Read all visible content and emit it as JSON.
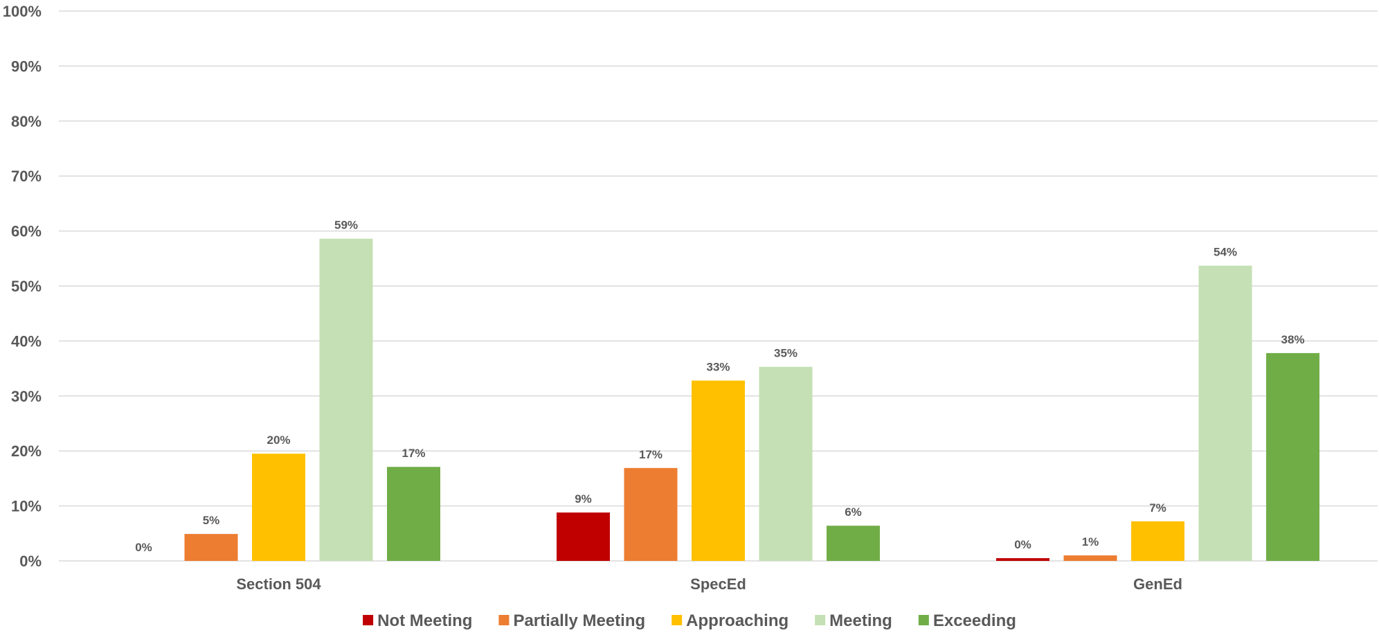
{
  "chart_data": {
    "type": "bar",
    "categories": [
      "Section 504",
      "SpecEd",
      "GenEd"
    ],
    "series": [
      {
        "name": "Not Meeting",
        "color": "#C00000",
        "values": [
          0.0,
          8.8,
          0.5
        ],
        "labels": [
          "0%",
          "9%",
          "0%"
        ]
      },
      {
        "name": "Partially Meeting",
        "color": "#ED7D31",
        "values": [
          4.9,
          16.9,
          1.0
        ],
        "labels": [
          "5%",
          "17%",
          "1%"
        ]
      },
      {
        "name": "Approaching",
        "color": "#FFC000",
        "values": [
          19.5,
          32.8,
          7.2
        ],
        "labels": [
          "20%",
          "33%",
          "7%"
        ]
      },
      {
        "name": "Meeting",
        "color": "#C5E0B4",
        "values": [
          58.6,
          35.3,
          53.7
        ],
        "labels": [
          "59%",
          "35%",
          "54%"
        ]
      },
      {
        "name": "Exceeding",
        "color": "#70AD47",
        "values": [
          17.1,
          6.4,
          37.8
        ],
        "labels": [
          "17%",
          "6%",
          "38%"
        ]
      }
    ],
    "y_ticks": [
      "0%",
      "10%",
      "20%",
      "30%",
      "40%",
      "50%",
      "60%",
      "70%",
      "80%",
      "90%",
      "100%"
    ],
    "ylim": [
      0,
      100
    ],
    "grid": true,
    "legend_position": "bottom",
    "title": "",
    "xlabel": "",
    "ylabel": ""
  }
}
